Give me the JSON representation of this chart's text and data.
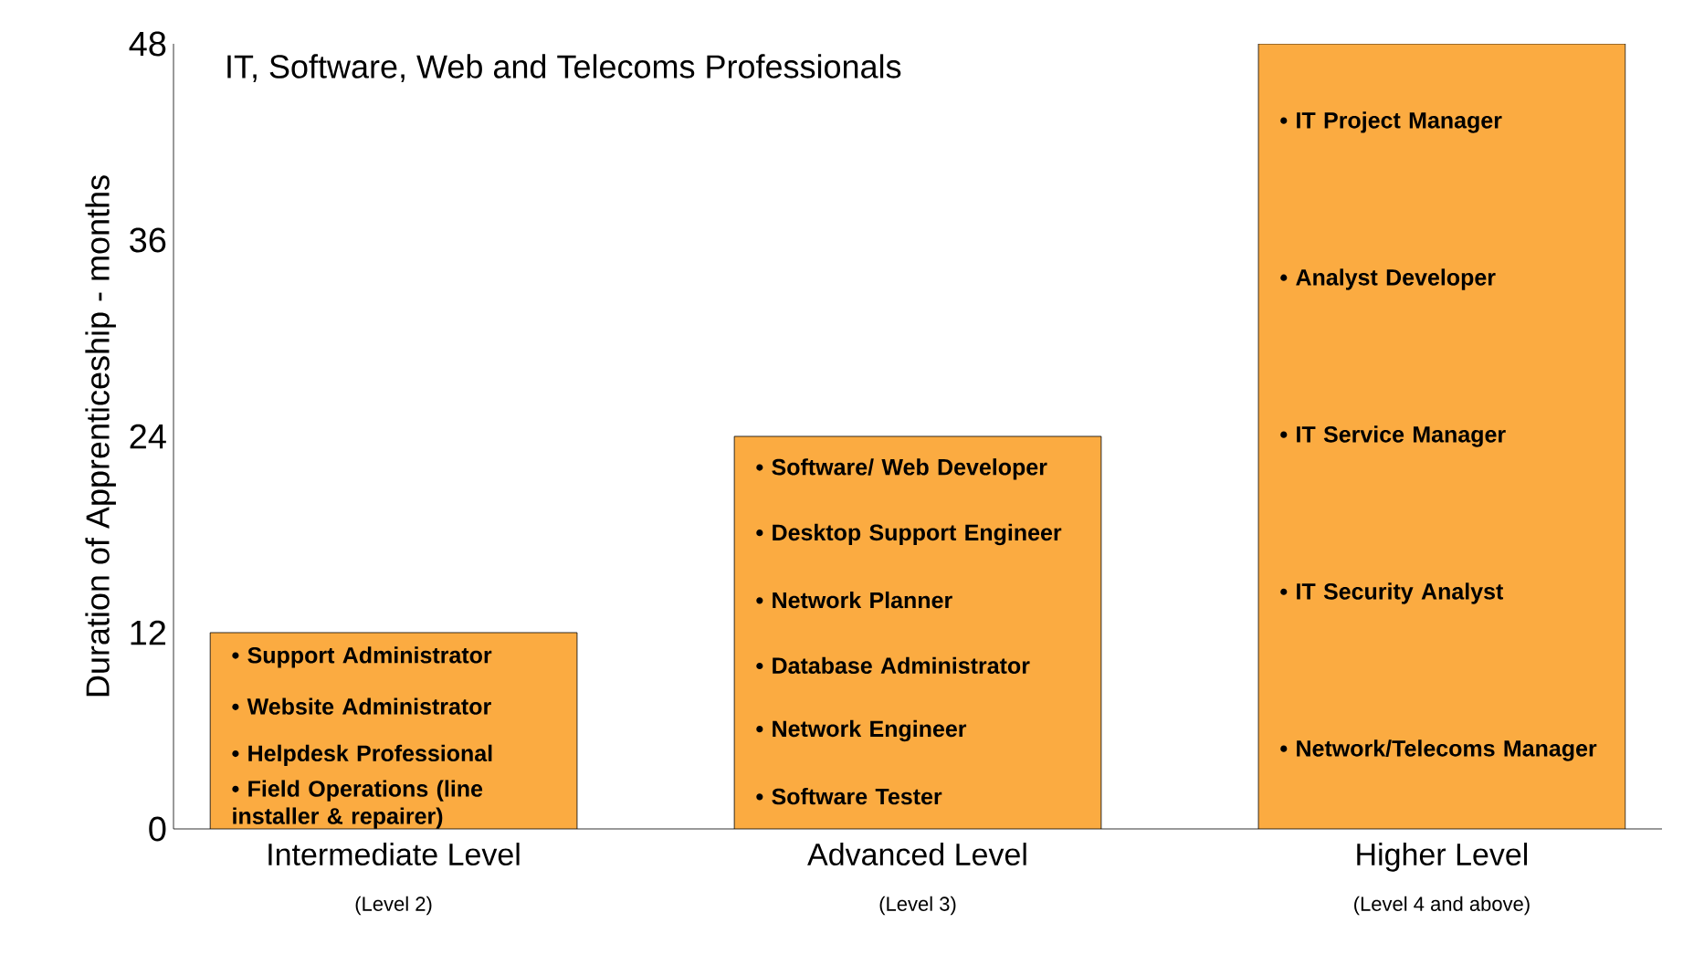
{
  "chart_data": {
    "type": "bar",
    "title": "IT, Software, Web and Telecoms Professionals",
    "ylabel": "Duration of Apprenticeship - months",
    "categories": [
      "Intermediate Level",
      "Advanced Level",
      "Higher Level"
    ],
    "values": [
      12,
      24,
      48
    ],
    "color": "#fbab41",
    "ylim": [
      0,
      48
    ],
    "yticks": [
      0,
      12,
      24,
      36,
      48
    ],
    "annotations": [
      "(Level 2)",
      "(Level 3)",
      "(Level 4 and above)",
      "• Support Administrator",
      "• Website Administrator",
      "• Helpdesk Professional",
      "• Field Operations (line installer & repairer)",
      "• Software/ Web Developer",
      "• Desktop Support Engineer",
      "• Network Planner",
      "• Database Administrator",
      "• Network Engineer",
      "• Software Tester",
      "• IT Project Manager",
      "• Analyst Developer",
      "• IT Service Manager",
      "• IT Security Analyst",
      "• Network/Telecoms Manager"
    ]
  }
}
